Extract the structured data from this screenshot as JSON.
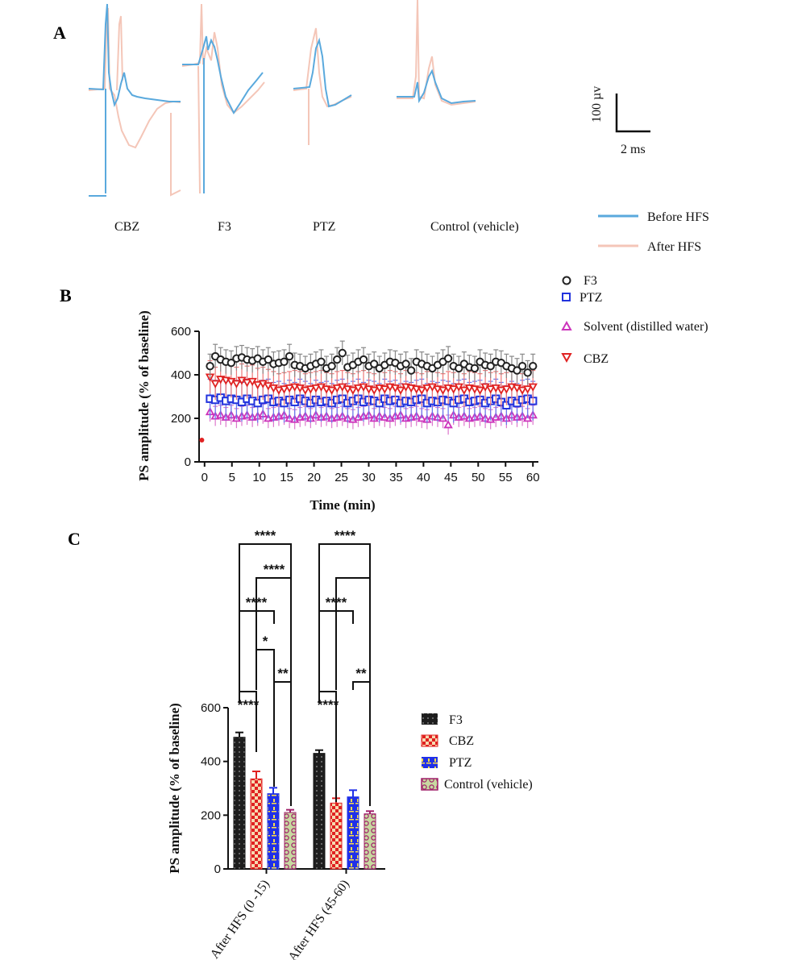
{
  "panel_a": {
    "label": "A",
    "groups": [
      "CBZ",
      "F3",
      "PTZ",
      "Control (vehicle)"
    ],
    "scalebar": {
      "vertical": "100 µv",
      "horizontal": "2 ms"
    },
    "legend": [
      {
        "name": "Before HFS",
        "color": "#5aa9dd"
      },
      {
        "name": "After HFS",
        "color": "#f4c6b8"
      }
    ]
  },
  "panel_b": {
    "label": "B",
    "ylabel": "PS amplitude (% of baseline)",
    "xlabel": "Time (min)",
    "legend": [
      "F3",
      "PTZ",
      "Solvent (distilled water)",
      "CBZ"
    ]
  },
  "panel_c": {
    "label": "C",
    "ylabel": "PS amplitude (% of baseline)",
    "legend": [
      "F3",
      "CBZ",
      "PTZ",
      "Control (vehicle)"
    ],
    "significance": {
      "after_0_15": [
        "****",
        "****",
        "****",
        "*",
        "**",
        "****"
      ],
      "after_45_60": [
        "****",
        "****",
        "**",
        "****"
      ]
    }
  },
  "chart_data": [
    {
      "type": "scatter",
      "panel": "B",
      "xlabel": "Time (min)",
      "ylabel": "PS amplitude (% of baseline)",
      "xlim": [
        -1,
        61
      ],
      "ylim": [
        0,
        600
      ],
      "xticks": [
        0,
        5,
        10,
        15,
        20,
        25,
        30,
        35,
        40,
        45,
        50,
        55,
        60
      ],
      "yticks": [
        0,
        200,
        400,
        600
      ],
      "baseline": [
        {
          "x": -0.5,
          "y": 100
        }
      ],
      "series": [
        {
          "name": "F3",
          "marker": "circle",
          "color": "#222222",
          "errcolor": "#888888",
          "y": [
            440,
            485,
            470,
            460,
            455,
            475,
            480,
            470,
            465,
            475,
            460,
            470,
            450,
            455,
            460,
            485,
            445,
            440,
            430,
            440,
            450,
            460,
            430,
            440,
            470,
            500,
            435,
            445,
            460,
            470,
            440,
            450,
            430,
            445,
            460,
            455,
            440,
            450,
            420,
            460,
            450,
            440,
            430,
            445,
            460,
            475,
            440,
            430,
            450,
            435,
            430,
            460,
            445,
            440,
            460,
            455,
            440,
            430,
            420,
            440,
            410,
            440
          ],
          "err": 55
        },
        {
          "name": "PTZ",
          "marker": "square",
          "color": "#2233dd",
          "errcolor": "#6677ee",
          "y": [
            290,
            285,
            295,
            280,
            290,
            285,
            275,
            290,
            280,
            270,
            285,
            290,
            275,
            280,
            270,
            285,
            275,
            290,
            280,
            270,
            285,
            275,
            280,
            270,
            285,
            290,
            270,
            280,
            290,
            275,
            285,
            280,
            270,
            290,
            280,
            285,
            270,
            280,
            275,
            285,
            290,
            270,
            280,
            275,
            285,
            280,
            270,
            285,
            290,
            275,
            280,
            285,
            270,
            280,
            290,
            275,
            260,
            280,
            270,
            285,
            290,
            280
          ],
          "err": 90
        },
        {
          "name": "Solvent (distilled water)",
          "marker": "triangle-up",
          "color": "#cc33bb",
          "errcolor": "#dd77cc",
          "y": [
            230,
            210,
            215,
            205,
            215,
            200,
            210,
            215,
            205,
            210,
            220,
            200,
            205,
            210,
            215,
            200,
            195,
            205,
            210,
            200,
            215,
            205,
            210,
            200,
            205,
            210,
            200,
            195,
            205,
            210,
            215,
            200,
            210,
            205,
            200,
            210,
            215,
            200,
            205,
            210,
            200,
            195,
            210,
            205,
            200,
            170,
            215,
            205,
            210,
            200,
            205,
            210,
            200,
            195,
            205,
            210,
            200,
            215,
            205,
            210,
            200,
            215
          ],
          "err": 45
        },
        {
          "name": "CBZ",
          "marker": "triangle-down",
          "color": "#e02222",
          "errcolor": "#ee7777",
          "y": [
            390,
            360,
            380,
            375,
            370,
            360,
            375,
            365,
            370,
            355,
            360,
            350,
            340,
            330,
            335,
            340,
            345,
            340,
            330,
            335,
            340,
            345,
            335,
            330,
            340,
            345,
            335,
            330,
            340,
            345,
            335,
            330,
            340,
            335,
            345,
            340,
            330,
            345,
            340,
            335,
            330,
            340,
            345,
            335,
            330,
            340,
            335,
            345,
            330,
            340,
            335,
            330,
            345,
            335,
            340,
            330,
            335,
            345,
            340,
            330,
            335,
            345
          ],
          "err": 75
        }
      ]
    },
    {
      "type": "bar",
      "panel": "C",
      "categories": [
        "After HFS (0 -15)",
        "After HFS (45-60)"
      ],
      "ylabel": "PS amplitude (% of baseline)",
      "ylim": [
        0,
        600
      ],
      "yticks": [
        0,
        200,
        400,
        600
      ],
      "series": [
        {
          "name": "F3",
          "values": [
            490,
            430
          ],
          "err": [
            18,
            12
          ],
          "fill": "#1e1e1e",
          "pattern": "dots-light",
          "errcolor": "#111111"
        },
        {
          "name": "CBZ",
          "values": [
            335,
            245
          ],
          "err": [
            28,
            18
          ],
          "fill": "#e02020",
          "pattern": "checker",
          "errcolor": "#e02020"
        },
        {
          "name": "PTZ",
          "values": [
            280,
            268
          ],
          "err": [
            22,
            25
          ],
          "fill": "#2030e8",
          "pattern": "yellow-dashes",
          "errcolor": "#2030e8"
        },
        {
          "name": "Control (vehicle)",
          "values": [
            210,
            205
          ],
          "err": [
            10,
            10
          ],
          "fill": "#c8d8a0",
          "pattern": "circles-magenta",
          "errcolor": "#a0206a"
        }
      ]
    }
  ]
}
